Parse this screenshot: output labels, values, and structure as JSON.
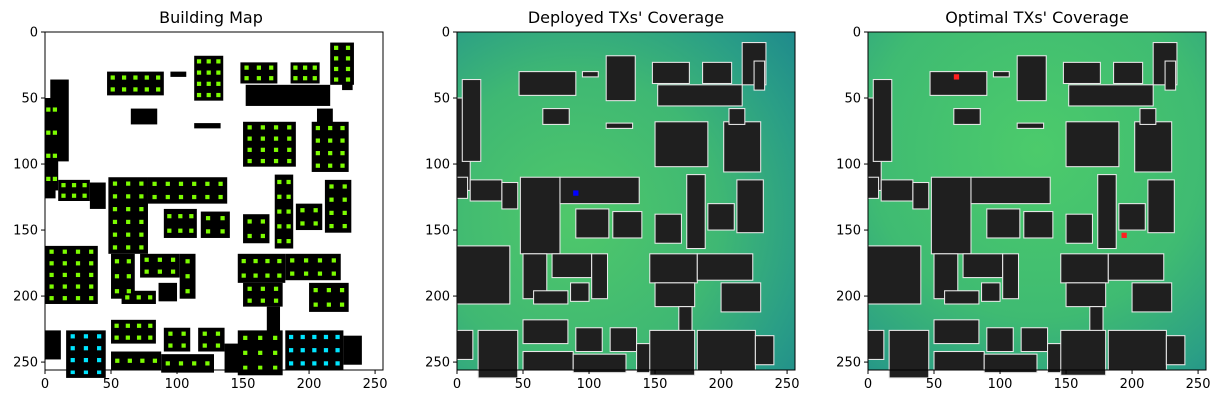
{
  "chart_data": [
    {
      "type": "heatmap",
      "title": "Building Map",
      "xlabel": "",
      "ylabel": "",
      "xlim": [
        0,
        256
      ],
      "ylim": [
        256,
        0
      ],
      "x_ticks": [
        0,
        50,
        100,
        150,
        200,
        250
      ],
      "y_ticks": [
        0,
        50,
        100,
        150,
        200,
        250
      ],
      "grid": false,
      "colors": {
        "background": "#ffffff",
        "building": "#000000",
        "candidate": "#7cfc00",
        "highlight": "#00e5ff",
        "deployed": "#1a3cff"
      }
    },
    {
      "type": "heatmap",
      "title": "Deployed TXs' Coverage",
      "xlabel": "",
      "ylabel": "",
      "xlim": [
        0,
        256
      ],
      "ylim": [
        256,
        0
      ],
      "x_ticks": [
        0,
        50,
        100,
        150,
        200,
        250
      ],
      "y_ticks": [
        0,
        50,
        100,
        150,
        200,
        250
      ],
      "grid": false,
      "transmitters": [
        {
          "x": 90,
          "y": 122,
          "color": "#0000ff"
        }
      ],
      "colors": {
        "coverage_high": "#44c46a",
        "coverage_low": "#1f8a8c",
        "building": "#1f1f1f",
        "outline": "#e8e8e8"
      }
    },
    {
      "type": "heatmap",
      "title": "Optimal TXs' Coverage",
      "xlabel": "",
      "ylabel": "",
      "xlim": [
        0,
        256
      ],
      "ylim": [
        256,
        0
      ],
      "x_ticks": [
        0,
        50,
        100,
        150,
        200,
        250
      ],
      "y_ticks": [
        0,
        50,
        100,
        150,
        200,
        250
      ],
      "grid": false,
      "transmitters": [
        {
          "x": 67,
          "y": 34,
          "color": "#ff2020"
        },
        {
          "x": 194,
          "y": 154,
          "color": "#ff2020"
        }
      ],
      "colors": {
        "coverage_high": "#44c46a",
        "coverage_low": "#1f8a8c",
        "building": "#1f1f1f",
        "outline": "#e8e8e8"
      }
    }
  ],
  "buildings": [
    [
      0,
      50,
      10,
      70
    ],
    [
      4,
      36,
      14,
      62
    ],
    [
      95,
      30,
      12,
      4
    ],
    [
      47,
      30,
      43,
      18
    ],
    [
      65,
      58,
      20,
      12
    ],
    [
      113,
      18,
      22,
      34
    ],
    [
      148,
      23,
      28,
      16
    ],
    [
      186,
      23,
      22,
      16
    ],
    [
      216,
      8,
      18,
      32
    ],
    [
      225,
      22,
      8,
      22
    ],
    [
      152,
      40,
      64,
      16
    ],
    [
      113,
      69,
      20,
      4
    ],
    [
      150,
      68,
      40,
      34
    ],
    [
      202,
      68,
      28,
      38
    ],
    [
      206,
      58,
      12,
      12
    ],
    [
      0,
      110,
      8,
      16
    ],
    [
      10,
      112,
      24,
      16
    ],
    [
      34,
      114,
      12,
      20
    ],
    [
      48,
      110,
      30,
      58
    ],
    [
      78,
      110,
      60,
      20
    ],
    [
      90,
      134,
      25,
      22
    ],
    [
      118,
      136,
      22,
      20
    ],
    [
      150,
      138,
      20,
      22
    ],
    [
      174,
      108,
      14,
      56
    ],
    [
      190,
      130,
      20,
      20
    ],
    [
      212,
      112,
      20,
      40
    ],
    [
      0,
      162,
      40,
      44
    ],
    [
      50,
      168,
      18,
      34
    ],
    [
      72,
      168,
      30,
      18
    ],
    [
      102,
      168,
      12,
      34
    ],
    [
      86,
      190,
      14,
      14
    ],
    [
      58,
      196,
      26,
      10
    ],
    [
      146,
      168,
      36,
      22
    ],
    [
      182,
      168,
      42,
      20
    ],
    [
      200,
      190,
      30,
      22
    ],
    [
      150,
      190,
      30,
      18
    ],
    [
      168,
      208,
      10,
      26
    ],
    [
      0,
      226,
      12,
      22
    ],
    [
      16,
      226,
      30,
      36
    ],
    [
      50,
      218,
      34,
      18
    ],
    [
      90,
      224,
      20,
      18
    ],
    [
      116,
      224,
      20,
      18
    ],
    [
      50,
      242,
      38,
      14
    ],
    [
      88,
      244,
      40,
      14
    ],
    [
      136,
      236,
      12,
      22
    ],
    [
      146,
      226,
      34,
      34
    ],
    [
      182,
      226,
      44,
      30
    ],
    [
      226,
      230,
      14,
      22
    ]
  ],
  "candidates": [
    [
      0,
      50,
      10,
      70,
      2,
      4
    ],
    [
      47,
      30,
      43,
      18,
      5,
      2
    ],
    [
      113,
      18,
      22,
      34,
      3,
      4
    ],
    [
      148,
      23,
      28,
      16,
      3,
      2
    ],
    [
      186,
      23,
      22,
      16,
      3,
      2
    ],
    [
      216,
      8,
      18,
      32,
      2,
      4
    ],
    [
      150,
      68,
      40,
      34,
      4,
      4
    ],
    [
      202,
      68,
      28,
      38,
      3,
      4
    ],
    [
      10,
      112,
      24,
      16,
      3,
      2
    ],
    [
      48,
      110,
      30,
      58,
      3,
      6
    ],
    [
      78,
      110,
      60,
      20,
      6,
      2
    ],
    [
      90,
      134,
      25,
      22,
      3,
      2
    ],
    [
      118,
      136,
      22,
      20,
      2,
      2
    ],
    [
      150,
      138,
      20,
      22,
      2,
      2
    ],
    [
      174,
      108,
      14,
      56,
      2,
      5
    ],
    [
      190,
      130,
      20,
      20,
      2,
      2
    ],
    [
      212,
      112,
      20,
      40,
      2,
      4
    ],
    [
      0,
      162,
      40,
      44,
      4,
      5
    ],
    [
      50,
      168,
      18,
      34,
      2,
      3
    ],
    [
      72,
      168,
      30,
      18,
      3,
      2
    ],
    [
      102,
      168,
      12,
      34,
      1,
      3
    ],
    [
      58,
      196,
      26,
      10,
      3,
      1
    ],
    [
      146,
      168,
      36,
      22,
      4,
      2
    ],
    [
      182,
      168,
      42,
      20,
      4,
      2
    ],
    [
      200,
      190,
      30,
      22,
      3,
      2
    ],
    [
      150,
      190,
      30,
      18,
      3,
      2
    ],
    [
      50,
      218,
      34,
      18,
      4,
      2
    ],
    [
      90,
      224,
      20,
      18,
      2,
      2
    ],
    [
      116,
      224,
      20,
      18,
      2,
      2
    ],
    [
      50,
      242,
      38,
      14,
      4,
      1
    ],
    [
      88,
      244,
      40,
      14,
      4,
      1
    ],
    [
      146,
      226,
      34,
      34,
      3,
      3
    ]
  ],
  "highlights": [
    [
      16,
      226,
      30,
      36,
      3,
      4
    ],
    [
      182,
      226,
      44,
      30,
      5,
      3
    ]
  ]
}
